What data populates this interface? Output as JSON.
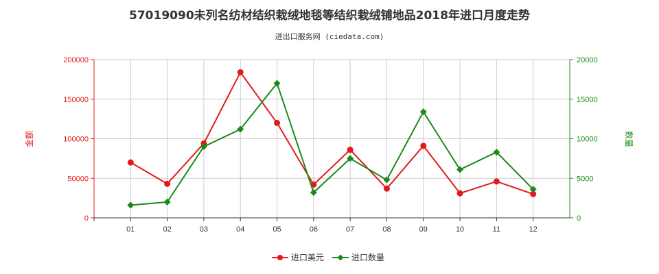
{
  "title": "57019090未列名纺材结织栽绒地毯等结织栽绒铺地品2018年进口月度走势",
  "subtitle": "进出口服务网 (ciedata.com)",
  "colors": {
    "left_axis": "#e31a1c",
    "right_axis": "#1a8a1a",
    "grid": "#cccccc",
    "axis": "#333333"
  },
  "chart_data": {
    "type": "line",
    "categories": [
      "01",
      "02",
      "03",
      "04",
      "05",
      "06",
      "07",
      "08",
      "09",
      "10",
      "11",
      "12"
    ],
    "series": [
      {
        "name": "进口美元",
        "axis": "left",
        "color": "#e31a1c",
        "marker": "circle",
        "values": [
          70000,
          43000,
          94000,
          184000,
          120000,
          42000,
          86000,
          37000,
          91000,
          31000,
          46000,
          30000
        ]
      },
      {
        "name": "进口数量",
        "axis": "right",
        "color": "#1a8a1a",
        "marker": "diamond",
        "values": [
          1600,
          2000,
          9000,
          11200,
          17000,
          3200,
          7500,
          4800,
          13400,
          6100,
          8300,
          3600
        ]
      }
    ],
    "y_left": {
      "label": "金额",
      "min": 0,
      "max": 200000,
      "ticks": [
        0,
        50000,
        100000,
        150000,
        200000
      ],
      "tick_labels": [
        "0",
        "50000",
        "100000",
        "150000",
        "200000"
      ]
    },
    "y_right": {
      "label": "数量",
      "min": 0,
      "max": 20000,
      "ticks": [
        0,
        5000,
        10000,
        15000,
        20000
      ],
      "tick_labels": [
        "0",
        "5000",
        "10000",
        "15000",
        "20000"
      ]
    },
    "grid": true,
    "legend_position": "bottom"
  }
}
